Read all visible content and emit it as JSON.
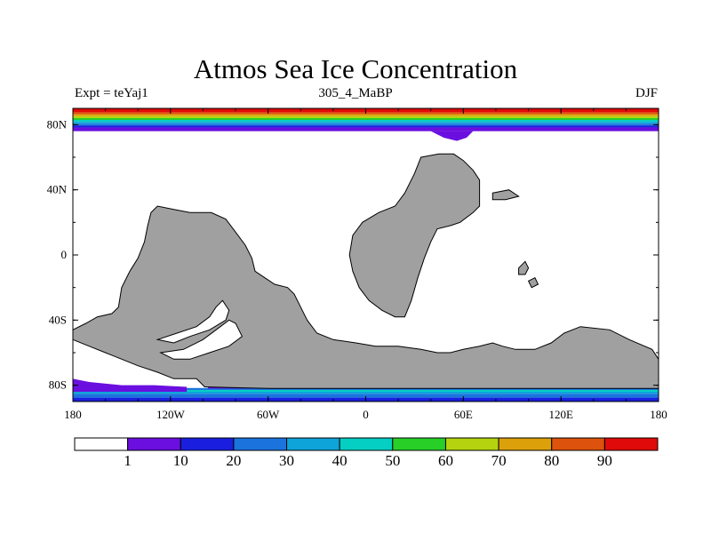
{
  "title": "Atmos Sea Ice Concentration",
  "subtitle_left": "Expt = teYaj1",
  "subtitle_center": "305_4_MaBP",
  "subtitle_right": "DJF",
  "y_ticks": [
    {
      "lat": 80,
      "label": "80N"
    },
    {
      "lat": 40,
      "label": "40N"
    },
    {
      "lat": 0,
      "label": "0"
    },
    {
      "lat": -40,
      "label": "40S"
    },
    {
      "lat": -80,
      "label": "80S"
    }
  ],
  "x_ticks": [
    {
      "lon": -180,
      "label": "180"
    },
    {
      "lon": -120,
      "label": "120W"
    },
    {
      "lon": -60,
      "label": "60W"
    },
    {
      "lon": 0,
      "label": "0"
    },
    {
      "lon": 60,
      "label": "60E"
    },
    {
      "lon": 120,
      "label": "120E"
    },
    {
      "lon": 180,
      "label": "180"
    }
  ],
  "colorbar": {
    "colors": [
      "#ffffff",
      "#6a0fdf",
      "#1a1fdf",
      "#1b74dd",
      "#0ea3d9",
      "#05cfc2",
      "#27cf27",
      "#b5d30f",
      "#dca10a",
      "#dd520c",
      "#e10a0a"
    ],
    "labels": [
      "1",
      "10",
      "20",
      "30",
      "40",
      "50",
      "60",
      "70",
      "80",
      "90"
    ]
  },
  "colors": {
    "land": "#a0a0a0",
    "land_edge": "#000000"
  },
  "map_data": {
    "projection": "cylindrical-equidistant",
    "lon_range": [
      -180,
      180
    ],
    "lat_range": [
      -90,
      90
    ],
    "north_ice_bands": [
      {
        "lat_from": 90,
        "lat_to": 87.6,
        "color_index": 10
      },
      {
        "lat_from": 87.6,
        "lat_to": 86.4,
        "color_index": 9
      },
      {
        "lat_from": 86.4,
        "lat_to": 85.2,
        "color_index": 8
      },
      {
        "lat_from": 85.2,
        "lat_to": 84.0,
        "color_index": 7
      },
      {
        "lat_from": 84.0,
        "lat_to": 82.9,
        "color_index": 6
      },
      {
        "lat_from": 82.9,
        "lat_to": 81.7,
        "color_index": 5
      },
      {
        "lat_from": 81.7,
        "lat_to": 80.6,
        "color_index": 4
      },
      {
        "lat_from": 80.6,
        "lat_to": 79.4,
        "color_index": 3
      },
      {
        "lat_from": 79.4,
        "lat_to": 78.3,
        "color_index": 2
      },
      {
        "lat_from": 78.3,
        "lat_to": 76.0,
        "color_index": 1
      }
    ],
    "south_ice_bands": [
      {
        "lat_from": -90,
        "lat_to": -87.6,
        "color_index": 2
      },
      {
        "lat_from": -87.6,
        "lat_to": -85.2,
        "color_index": 3
      },
      {
        "lat_from": -85.2,
        "lat_to": -84.0,
        "color_index": 4
      },
      {
        "lat_from": -84.0,
        "lat_to": -82.9,
        "color_index": 5
      },
      {
        "lat_from": -82.9,
        "lat_to": -81.7,
        "color_index": 3
      }
    ],
    "land_polygons": [
      [
        [
          -99,
          -81
        ],
        [
          -104,
          -76
        ],
        [
          -118,
          -76
        ],
        [
          -128,
          -72
        ],
        [
          -140,
          -68
        ],
        [
          -150,
          -64
        ],
        [
          -160,
          -60
        ],
        [
          -170,
          -56
        ],
        [
          -180,
          -52
        ],
        [
          -180,
          -46
        ],
        [
          -172,
          -42
        ],
        [
          -165,
          -38
        ],
        [
          -156,
          -36
        ],
        [
          -152,
          -32
        ],
        [
          -150,
          -20
        ],
        [
          -145,
          -10
        ],
        [
          -140,
          -2
        ],
        [
          -136,
          8
        ],
        [
          -134,
          18
        ],
        [
          -132,
          26
        ],
        [
          -128,
          30
        ],
        [
          -118,
          28
        ],
        [
          -108,
          26
        ],
        [
          -95,
          26
        ],
        [
          -86,
          22
        ],
        [
          -80,
          14
        ],
        [
          -74,
          6
        ],
        [
          -70,
          -2
        ],
        [
          -68,
          -10
        ],
        [
          -62,
          -14
        ],
        [
          -56,
          -18
        ],
        [
          -48,
          -20
        ],
        [
          -44,
          -24
        ],
        [
          -40,
          -32
        ],
        [
          -36,
          -40
        ],
        [
          -30,
          -48
        ],
        [
          -20,
          -52
        ],
        [
          -6,
          -54
        ],
        [
          6,
          -56
        ],
        [
          20,
          -56
        ],
        [
          34,
          -58
        ],
        [
          44,
          -60
        ],
        [
          52,
          -60
        ],
        [
          60,
          -58
        ],
        [
          70,
          -56
        ],
        [
          78,
          -54
        ],
        [
          84,
          -56
        ],
        [
          92,
          -58
        ],
        [
          104,
          -58
        ],
        [
          114,
          -54
        ],
        [
          122,
          -48
        ],
        [
          132,
          -44
        ],
        [
          150,
          -46
        ],
        [
          162,
          -52
        ],
        [
          176,
          -58
        ],
        [
          180,
          -64
        ],
        [
          180,
          -82
        ],
        [
          120,
          -82
        ],
        [
          60,
          -82
        ],
        [
          0,
          -82
        ],
        [
          -60,
          -82
        ]
      ],
      [
        [
          34,
          60
        ],
        [
          45,
          62
        ],
        [
          54,
          62
        ],
        [
          60,
          58
        ],
        [
          66,
          52
        ],
        [
          70,
          46
        ],
        [
          70,
          30
        ],
        [
          66,
          26
        ],
        [
          58,
          20
        ],
        [
          52,
          18
        ],
        [
          44,
          16
        ],
        [
          40,
          8
        ],
        [
          36,
          -2
        ],
        [
          32,
          -14
        ],
        [
          28,
          -28
        ],
        [
          24,
          -38
        ],
        [
          18,
          -38
        ],
        [
          10,
          -34
        ],
        [
          2,
          -28
        ],
        [
          -4,
          -20
        ],
        [
          -8,
          -10
        ],
        [
          -10,
          0
        ],
        [
          -8,
          12
        ],
        [
          -2,
          20
        ],
        [
          8,
          26
        ],
        [
          18,
          30
        ],
        [
          24,
          38
        ],
        [
          30,
          50
        ]
      ]
    ],
    "land_holes": [
      [
        [
          -126,
          -60
        ],
        [
          -112,
          -58
        ],
        [
          -100,
          -52
        ],
        [
          -92,
          -46
        ],
        [
          -84,
          -40
        ],
        [
          -80,
          -42
        ],
        [
          -76,
          -50
        ],
        [
          -84,
          -56
        ],
        [
          -96,
          -60
        ],
        [
          -108,
          -64
        ],
        [
          -118,
          -64
        ]
      ],
      [
        [
          -128,
          -52
        ],
        [
          -116,
          -48
        ],
        [
          -104,
          -44
        ],
        [
          -96,
          -38
        ],
        [
          -92,
          -32
        ],
        [
          -88,
          -28
        ],
        [
          -84,
          -34
        ],
        [
          -86,
          -40
        ],
        [
          -96,
          -46
        ],
        [
          -108,
          -50
        ],
        [
          -118,
          -54
        ]
      ]
    ],
    "islands": [
      [
        [
          78,
          38
        ],
        [
          88,
          40
        ],
        [
          94,
          36
        ],
        [
          86,
          34
        ],
        [
          78,
          34
        ]
      ],
      [
        [
          94,
          -8
        ],
        [
          98,
          -4
        ],
        [
          100,
          -8
        ],
        [
          98,
          -12
        ],
        [
          94,
          -12
        ]
      ],
      [
        [
          100,
          -16
        ],
        [
          104,
          -14
        ],
        [
          106,
          -18
        ],
        [
          102,
          -20
        ]
      ]
    ]
  }
}
